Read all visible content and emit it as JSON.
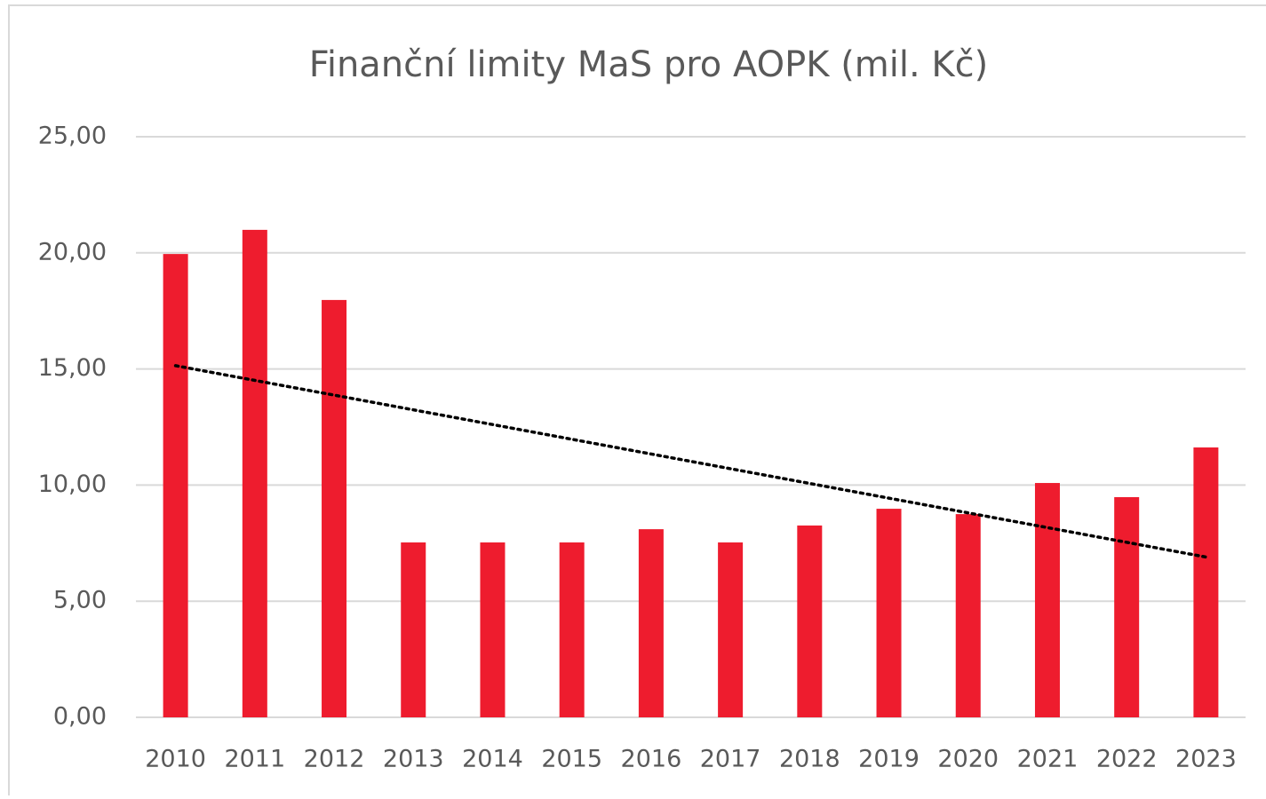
{
  "chart_data": {
    "type": "bar",
    "title": "Finanční limity MaS pro AOPK (mil. Kč)",
    "categories": [
      "2010",
      "2011",
      "2012",
      "2013",
      "2014",
      "2015",
      "2016",
      "2017",
      "2018",
      "2019",
      "2020",
      "2021",
      "2022",
      "2023"
    ],
    "values": [
      19.95,
      20.99,
      17.97,
      7.53,
      7.53,
      7.53,
      8.1,
      7.53,
      8.26,
      8.98,
      8.75,
      10.09,
      9.48,
      11.62
    ],
    "color": "#ee1c2e",
    "ylim": [
      0,
      25
    ],
    "yticks": [
      {
        "value": 0,
        "label": "0,00"
      },
      {
        "value": 5,
        "label": "5,00"
      },
      {
        "value": 10,
        "label": "10,00"
      },
      {
        "value": 15,
        "label": "15,00"
      },
      {
        "value": 20,
        "label": "20,00"
      },
      {
        "value": 25,
        "label": "25,00"
      }
    ],
    "grid": true,
    "trendline": "linear"
  }
}
